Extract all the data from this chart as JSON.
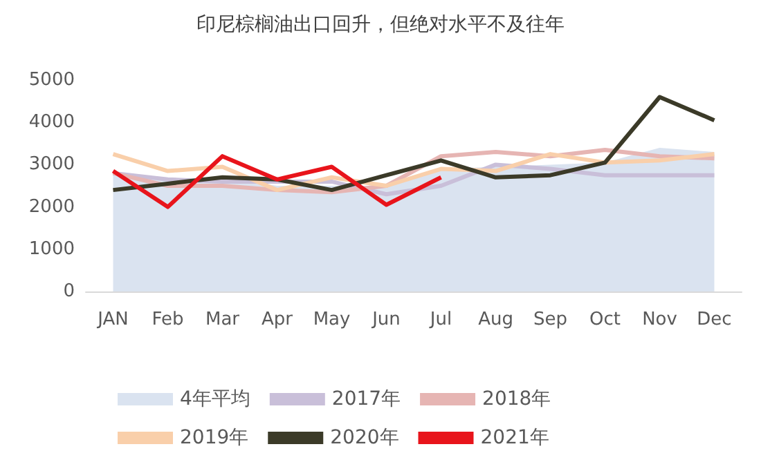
{
  "chart_data": {
    "type": "line",
    "title": "印尼棕榈油出口回升，但绝对水平不及往年",
    "categories": [
      "JAN",
      "Feb",
      "Mar",
      "Apr",
      "May",
      "Jun",
      "Jul",
      "Aug",
      "Sep",
      "Oct",
      "Nov",
      "Dec"
    ],
    "ylim": [
      0,
      5000
    ],
    "yticks": [
      0,
      1000,
      2000,
      3000,
      4000,
      5000
    ],
    "grid": false,
    "legend": "bottom",
    "marker": "none",
    "line_style": "solid",
    "series": [
      {
        "name": "4年平均",
        "type": "area",
        "color": "#dae3f0",
        "values": [
          2800,
          2650,
          2700,
          2500,
          2500,
          2500,
          2900,
          2950,
          3000,
          3050,
          3400,
          3300
        ]
      },
      {
        "name": "2017年",
        "color": "#c9bfd9",
        "values": [
          2800,
          2650,
          2600,
          2600,
          2600,
          2300,
          2500,
          3000,
          2900,
          2750,
          2750,
          2750
        ]
      },
      {
        "name": "2018年",
        "color": "#e6b5b3",
        "values": [
          2800,
          2500,
          2500,
          2400,
          2350,
          2500,
          3200,
          3300,
          3200,
          3350,
          3200,
          3150
        ]
      },
      {
        "name": "2019年",
        "color": "#f9cfaa",
        "values": [
          3250,
          2850,
          2950,
          2400,
          2700,
          2500,
          2900,
          2850,
          3250,
          3050,
          3100,
          3250
        ]
      },
      {
        "name": "2020年",
        "color": "#3b3a28",
        "values": [
          2400,
          2550,
          2700,
          2650,
          2400,
          2750,
          3100,
          2700,
          2750,
          3050,
          4600,
          4050
        ]
      },
      {
        "name": "2021年",
        "color": "#e8141b",
        "values": [
          2850,
          2000,
          3200,
          2650,
          2950,
          2050,
          2700,
          null,
          null,
          null,
          null,
          null
        ]
      }
    ]
  }
}
